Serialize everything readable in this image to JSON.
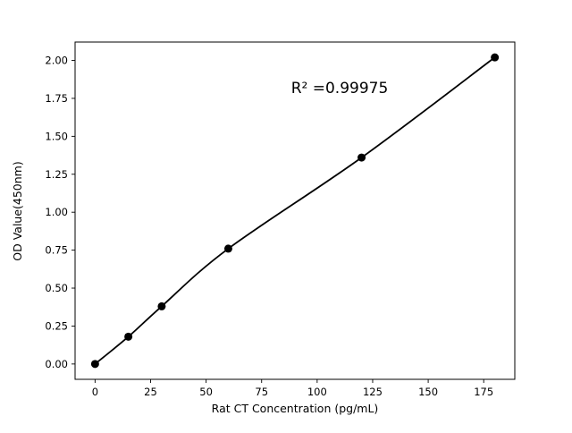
{
  "chart_data": {
    "type": "scatter",
    "xlabel": "Rat CT Concentration (pg/mL)",
    "ylabel": "OD Value(450nm)",
    "annotation": "R² =0.99975",
    "x": [
      0,
      15,
      30,
      60,
      120,
      180
    ],
    "y": [
      0.0,
      0.18,
      0.38,
      0.76,
      1.36,
      2.02
    ],
    "xlim": [
      -9,
      189
    ],
    "ylim": [
      -0.101,
      2.121
    ],
    "xticks": [
      0,
      25,
      50,
      75,
      100,
      125,
      150,
      175
    ],
    "xtick_labels": [
      "0",
      "25",
      "50",
      "75",
      "100",
      "125",
      "150",
      "175"
    ],
    "yticks": [
      0.0,
      0.25,
      0.5,
      0.75,
      1.0,
      1.25,
      1.5,
      1.75,
      2.0
    ],
    "ytick_labels": [
      "0.00",
      "0.25",
      "0.50",
      "0.75",
      "1.00",
      "1.25",
      "1.50",
      "1.75",
      "2.00"
    ],
    "grid": false,
    "legend_position": "none",
    "marker_color": "#000000",
    "line_color": "#000000",
    "spine_color": "#000000",
    "background": "#ffffff"
  }
}
